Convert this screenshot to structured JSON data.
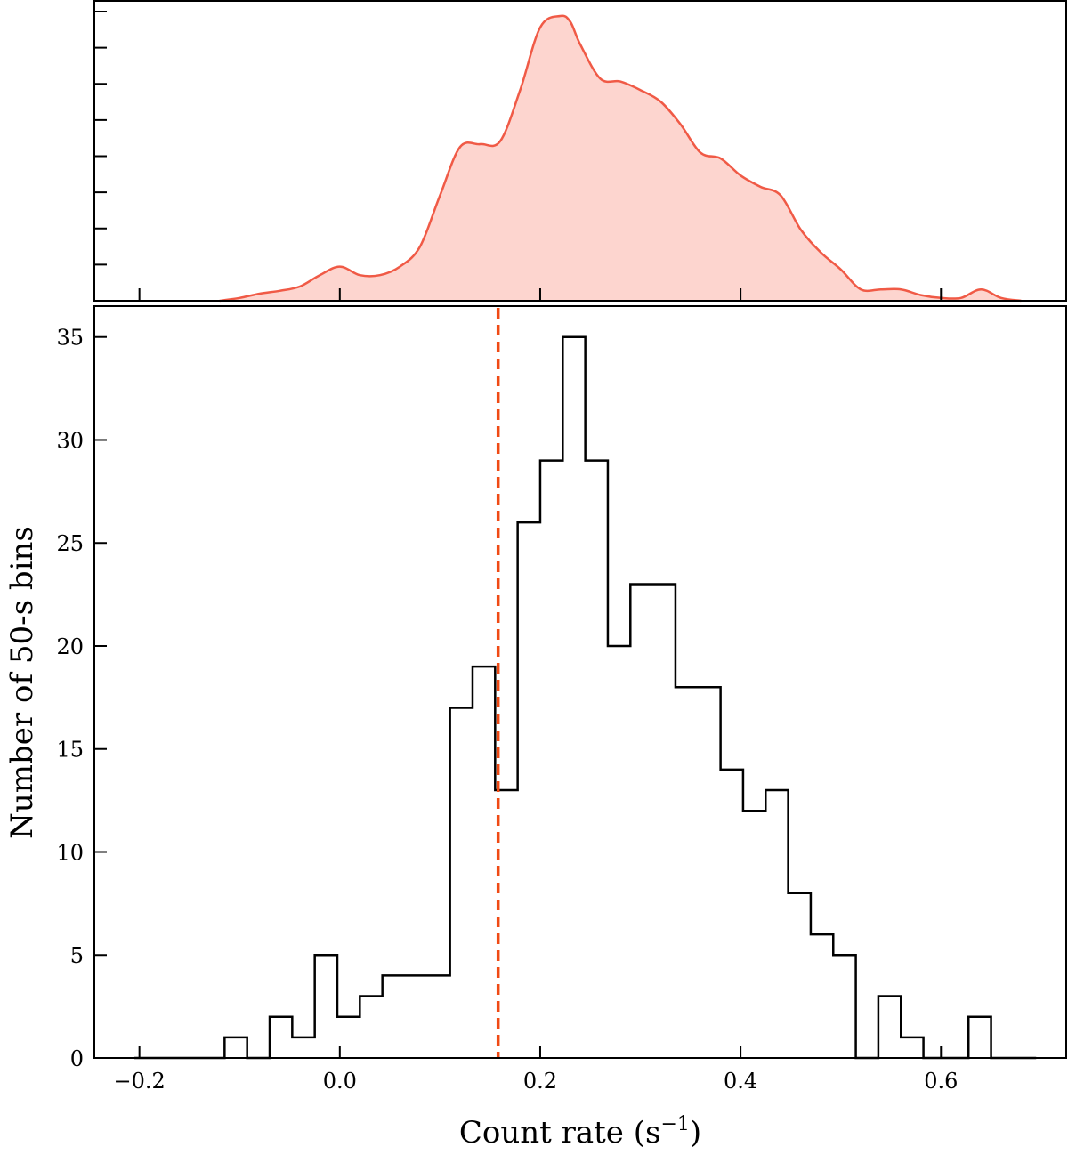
{
  "chart_data": [
    {
      "type": "area",
      "panel": "top",
      "description_role": "kernel-density",
      "x_grid": [
        -0.12,
        -0.1,
        -0.08,
        -0.06,
        -0.04,
        -0.02,
        0.0,
        0.02,
        0.04,
        0.06,
        0.08,
        0.1,
        0.12,
        0.14,
        0.16,
        0.18,
        0.2,
        0.22,
        0.23,
        0.24,
        0.26,
        0.28,
        0.3,
        0.32,
        0.34,
        0.36,
        0.38,
        0.4,
        0.42,
        0.44,
        0.46,
        0.48,
        0.5,
        0.52,
        0.54,
        0.56,
        0.58,
        0.6,
        0.62,
        0.64,
        0.66,
        0.68
      ],
      "density": [
        0.0,
        0.01,
        0.025,
        0.035,
        0.05,
        0.09,
        0.12,
        0.09,
        0.09,
        0.12,
        0.19,
        0.37,
        0.54,
        0.55,
        0.56,
        0.74,
        0.96,
        1.0,
        0.98,
        0.9,
        0.78,
        0.77,
        0.74,
        0.7,
        0.62,
        0.52,
        0.5,
        0.44,
        0.4,
        0.37,
        0.25,
        0.17,
        0.11,
        0.04,
        0.04,
        0.04,
        0.02,
        0.01,
        0.01,
        0.04,
        0.01,
        0.0
      ],
      "line_color": "#f05a46",
      "fill_color": "#fdd5cf",
      "xlim": [
        -0.245,
        0.725
      ]
    },
    {
      "type": "bar",
      "panel": "bottom",
      "style": "step-histogram",
      "bin_width": 0.0225,
      "bin_start": -0.205,
      "values": [
        0,
        0,
        0,
        0,
        1,
        0,
        2,
        1,
        5,
        2,
        3,
        4,
        4,
        4,
        17,
        19,
        13,
        26,
        29,
        35,
        29,
        20,
        23,
        23,
        18,
        18,
        14,
        12,
        13,
        8,
        6,
        5,
        0,
        3,
        1,
        0,
        0,
        2,
        0,
        0
      ],
      "xlabel": "Count rate (s",
      "xlabel_sup": "−1",
      "xlabel_end": ")",
      "ylabel": "Number of 50-s bins",
      "xlim": [
        -0.245,
        0.725
      ],
      "ylim": [
        0,
        36.5
      ],
      "xticks": [
        -0.2,
        0.0,
        0.2,
        0.4,
        0.6
      ],
      "xtick_labels": [
        "−0.2",
        "0.0",
        "0.2",
        "0.4",
        "0.6"
      ],
      "yticks": [
        0,
        5,
        10,
        15,
        20,
        25,
        30,
        35
      ],
      "ytick_labels": [
        "0",
        "5",
        "10",
        "15",
        "20",
        "25",
        "30",
        "35"
      ],
      "line_color": "#000000",
      "vline": {
        "x": 0.158,
        "color": "#f04a14",
        "style": "dashed"
      }
    }
  ]
}
